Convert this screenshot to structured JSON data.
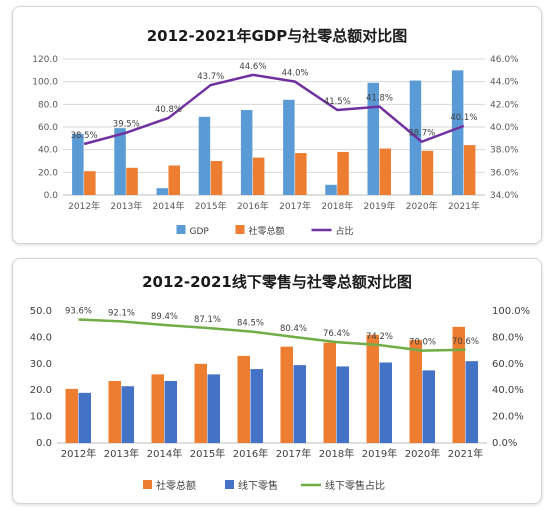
{
  "chart_data": [
    {
      "type": "bar",
      "title": "2012-2021年GDP与社零总额对比图",
      "categories": [
        "2012年",
        "2013年",
        "2014年",
        "2015年",
        "2016年",
        "2017年",
        "2018年",
        "2019年",
        "2020年",
        "2021年"
      ],
      "series": [
        {
          "name": "GDP",
          "kind": "bar",
          "axis": "left",
          "color": "#5b9bd5",
          "values": [
            54,
            59,
            6,
            69,
            75,
            84,
            9,
            99,
            101,
            110
          ]
        },
        {
          "name": "社零总额",
          "kind": "bar",
          "axis": "left",
          "color": "#ed7d31",
          "values": [
            21,
            24,
            26,
            30,
            33,
            37,
            38,
            41,
            39,
            44
          ]
        },
        {
          "name": "占比",
          "kind": "line",
          "axis": "right",
          "color": "#7030a0",
          "values": [
            38.5,
            39.5,
            40.8,
            43.7,
            44.6,
            44.0,
            41.5,
            41.8,
            38.7,
            40.1
          ],
          "labels": [
            "38.5%",
            "39.5%",
            "40.8%",
            "43.7%",
            "44.6%",
            "44.0%",
            "41.5%",
            "41.8%",
            "38.7%",
            "40.1%"
          ]
        }
      ],
      "ylim": [
        0,
        120
      ],
      "yticks": [
        "0.0",
        "20.0",
        "40.0",
        "60.0",
        "80.0",
        "100.0",
        "120.0"
      ],
      "y2lim": [
        34,
        46
      ],
      "y2ticks": [
        "34.0%",
        "36.0%",
        "38.0%",
        "40.0%",
        "42.0%",
        "44.0%",
        "46.0%"
      ],
      "grid": true,
      "legend": "bottom"
    },
    {
      "type": "bar",
      "title": "2012-2021线下零售与社零总额对比图",
      "categories": [
        "2012年",
        "2013年",
        "2014年",
        "2015年",
        "2016年",
        "2017年",
        "2018年",
        "2019年",
        "2020年",
        "2021年"
      ],
      "series": [
        {
          "name": "社零总额",
          "kind": "bar",
          "axis": "left",
          "color": "#ed7d31",
          "values": [
            20.5,
            23.5,
            26,
            30,
            33,
            36.5,
            38,
            41,
            39,
            44
          ]
        },
        {
          "name": "线下零售",
          "kind": "bar",
          "axis": "left",
          "color": "#4472c4",
          "values": [
            19,
            21.5,
            23.5,
            26,
            28,
            29.5,
            29,
            30.5,
            27.5,
            31
          ]
        },
        {
          "name": "线下零售占比",
          "kind": "line",
          "axis": "right",
          "color": "#70ad47",
          "values": [
            93.6,
            92.1,
            89.4,
            87.1,
            84.5,
            80.4,
            76.4,
            74.2,
            70.0,
            70.6
          ],
          "labels": [
            "93.6%",
            "92.1%",
            "89.4%",
            "87.1%",
            "84.5%",
            "80.4%",
            "76.4%",
            "74.2%",
            "70.0%",
            "70.6%"
          ]
        }
      ],
      "ylim": [
        0,
        50
      ],
      "yticks": [
        "0.0",
        "10.0",
        "20.0",
        "30.0",
        "40.0",
        "50.0"
      ],
      "y2lim": [
        0,
        100
      ],
      "y2ticks": [
        "0.0%",
        "20.0%",
        "40.0%",
        "60.0%",
        "80.0%",
        "100.0%"
      ],
      "grid": false,
      "legend": "bottom"
    }
  ]
}
